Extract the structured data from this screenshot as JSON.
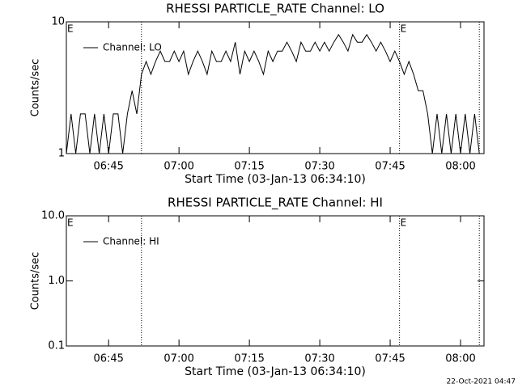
{
  "chart_data": [
    {
      "type": "line",
      "title": "RHESSI PARTICLE_RATE Channel: LO",
      "xlabel": "Start Time (03-Jan-13 06:34:10)",
      "ylabel": "Counts/sec",
      "log_y": true,
      "ylim": [
        1,
        10
      ],
      "yticks": [
        1,
        10
      ],
      "xlim": [
        "06:36",
        "08:05"
      ],
      "xticks": [
        "06:45",
        "07:00",
        "07:15",
        "07:30",
        "07:45",
        "08:00"
      ],
      "vlines": [
        "06:52",
        "07:47",
        "08:04"
      ],
      "annotations": [
        {
          "text": "E",
          "x": "06:36"
        },
        {
          "text": "E",
          "x": "07:47"
        }
      ],
      "x": [
        "06:36",
        "06:37",
        "06:38",
        "06:39",
        "06:40",
        "06:41",
        "06:42",
        "06:43",
        "06:44",
        "06:45",
        "06:46",
        "06:47",
        "06:48",
        "06:49",
        "06:50",
        "06:51",
        "06:52",
        "06:53",
        "06:54",
        "06:55",
        "06:56",
        "06:57",
        "06:58",
        "06:59",
        "07:00",
        "07:01",
        "07:02",
        "07:03",
        "07:04",
        "07:05",
        "07:06",
        "07:07",
        "07:08",
        "07:09",
        "07:10",
        "07:11",
        "07:12",
        "07:13",
        "07:14",
        "07:15",
        "07:16",
        "07:17",
        "07:18",
        "07:19",
        "07:20",
        "07:21",
        "07:22",
        "07:23",
        "07:24",
        "07:25",
        "07:26",
        "07:27",
        "07:28",
        "07:29",
        "07:30",
        "07:31",
        "07:32",
        "07:33",
        "07:34",
        "07:35",
        "07:36",
        "07:37",
        "07:38",
        "07:39",
        "07:40",
        "07:41",
        "07:42",
        "07:43",
        "07:44",
        "07:45",
        "07:46",
        "07:47",
        "07:48",
        "07:49",
        "07:50",
        "07:51",
        "07:52",
        "07:53",
        "07:54",
        "07:55",
        "07:56",
        "07:57",
        "07:58",
        "07:59",
        "08:00",
        "08:01",
        "08:02",
        "08:03",
        "08:04"
      ],
      "series": [
        {
          "name": "Channel: LO",
          "color": "#000000",
          "values": [
            1,
            2,
            1,
            2,
            2,
            1,
            2,
            1,
            2,
            1,
            2,
            2,
            1,
            2,
            3,
            2,
            4,
            5,
            4,
            5,
            6,
            5,
            5,
            6,
            5,
            6,
            4,
            5,
            6,
            5,
            4,
            6,
            5,
            5,
            6,
            5,
            7,
            4,
            6,
            5,
            6,
            5,
            4,
            6,
            5,
            6,
            6,
            7,
            6,
            5,
            7,
            6,
            6,
            7,
            6,
            7,
            6,
            7,
            8,
            7,
            6,
            8,
            7,
            7,
            8,
            7,
            6,
            7,
            6,
            5,
            6,
            5,
            4,
            5,
            4,
            3,
            3,
            2,
            1,
            2,
            1,
            2,
            1,
            2,
            1,
            2,
            1,
            2,
            1
          ]
        }
      ]
    },
    {
      "type": "line",
      "title": "RHESSI PARTICLE_RATE Channel: HI",
      "xlabel": "Start Time (03-Jan-13 06:34:10)",
      "ylabel": "Counts/sec",
      "log_y": true,
      "ylim": [
        0.1,
        10
      ],
      "yticks": [
        0.1,
        {
          "value": 1,
          "label": "1.0"
        },
        {
          "value": 10,
          "label": "10.0"
        }
      ],
      "xlim": [
        "06:36",
        "08:05"
      ],
      "xticks": [
        "06:45",
        "07:00",
        "07:15",
        "07:30",
        "07:45",
        "08:00"
      ],
      "vlines": [
        "06:52",
        "07:47",
        "08:04"
      ],
      "annotations": [
        {
          "text": "E",
          "x": "06:36"
        },
        {
          "text": "E",
          "x": "07:47"
        }
      ],
      "x": [],
      "series": [
        {
          "name": "Channel: HI",
          "color": "#000000",
          "values": []
        }
      ]
    }
  ],
  "footer": "22-Oct-2021 04:47"
}
